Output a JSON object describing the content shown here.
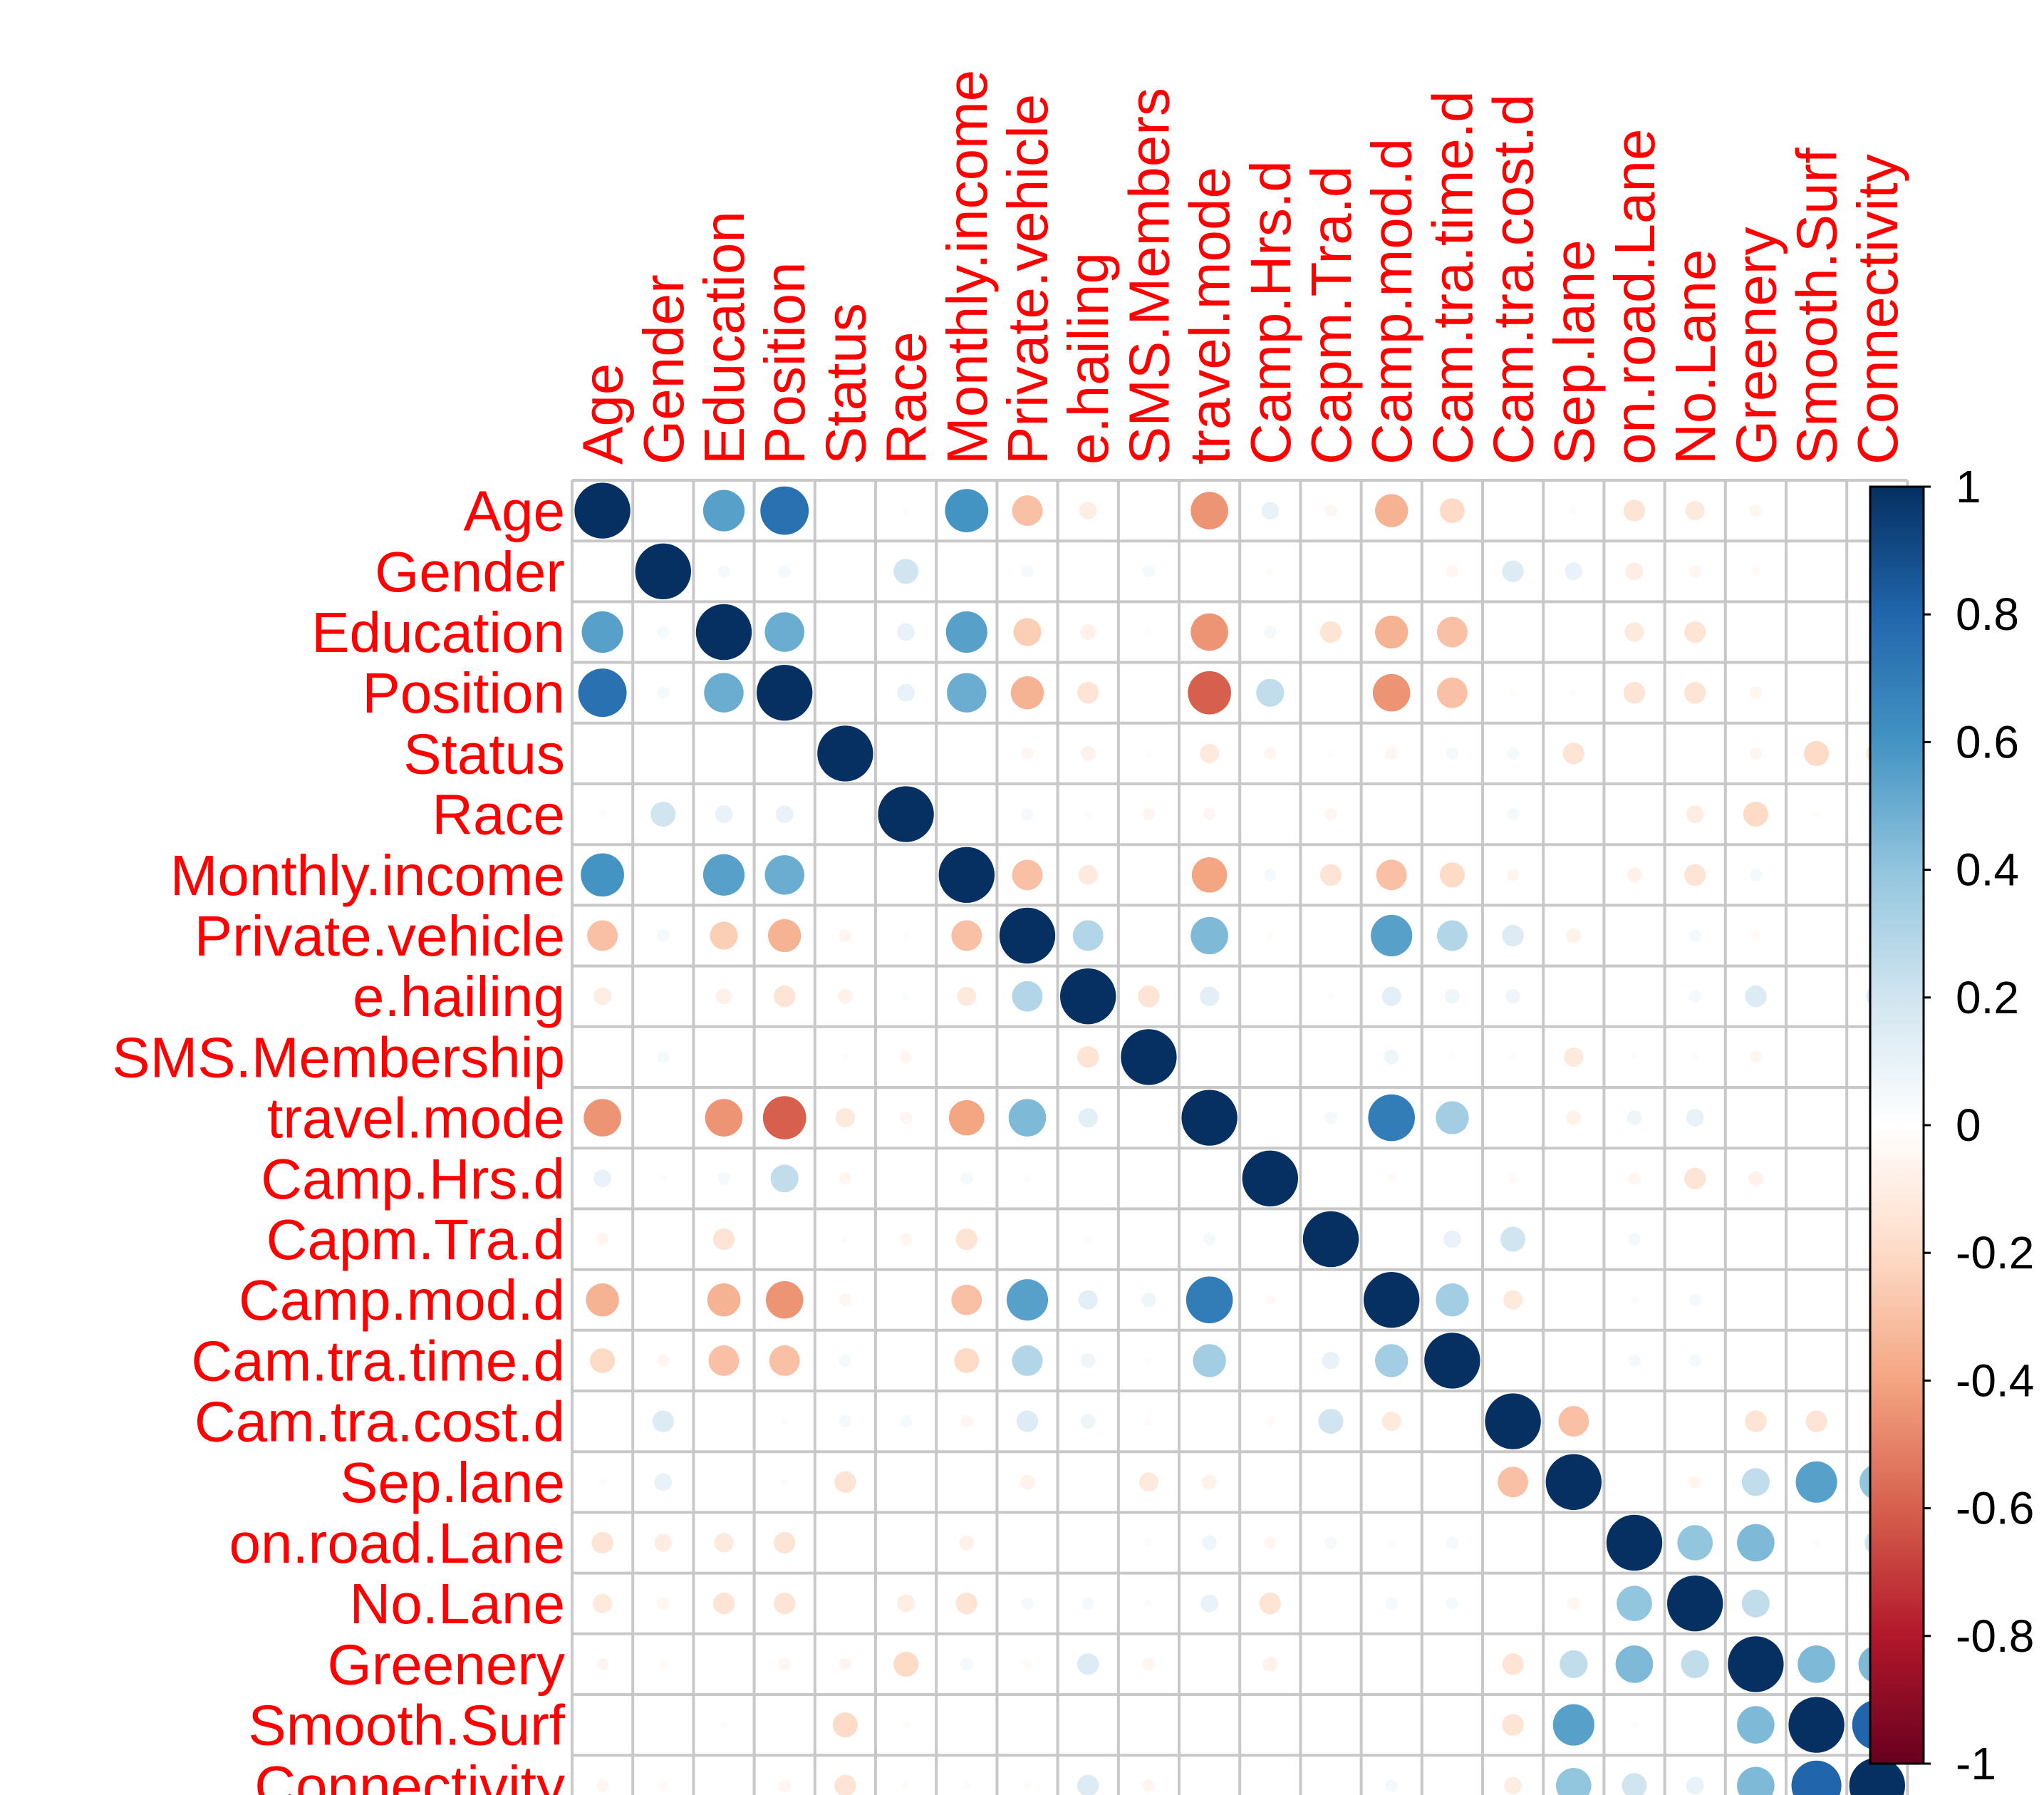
{
  "chart_data": {
    "type": "heatmap",
    "variables": [
      "Age",
      "Gender",
      "Education",
      "Position",
      "Status",
      "Race",
      "Monthly.income",
      "Private.vehicle",
      "e.hailing",
      "SMS.Membership",
      "travel.mode",
      "Camp.Hrs.d",
      "Capm.Tra.d",
      "Camp.mod.d",
      "Cam.tra.time.d",
      "Cam.tra.cost.d",
      "Sep.lane",
      "on.road.Lane",
      "No.Lane",
      "Greenery",
      "Smooth.Surf",
      "Connectivity"
    ],
    "column_labels": [
      "Age",
      "Gender",
      "Education",
      "Position",
      "Status",
      "Race",
      "Monthly.income",
      "Private.vehicle",
      "e.hailing",
      "SMS.Members",
      "travel.mode",
      "Camp.Hrs.d",
      "Capm.Tra.d",
      "Camp.mod.d",
      "Cam.tra.time.d",
      "Cam.tra.cost.d",
      "Sep.lane",
      "on.road.Lane",
      "No.Lane",
      "Greenery",
      "Smooth.Surf",
      "Connectivity"
    ],
    "matrix": [
      [
        1,
        0,
        0.55,
        0.75,
        0,
        0.02,
        0.6,
        -0.3,
        -0.1,
        0,
        -0.45,
        0.1,
        -0.05,
        -0.35,
        -0.2,
        0,
        0.02,
        -0.15,
        -0.12,
        -0.05,
        0,
        -0.05
      ],
      [
        0,
        1,
        0.05,
        0.05,
        0,
        0.2,
        0,
        0.05,
        0,
        0.05,
        0,
        -0.02,
        0,
        0,
        -0.05,
        0.15,
        0.1,
        -0.1,
        -0.05,
        -0.03,
        0,
        -0.03
      ],
      [
        0.55,
        0.05,
        1,
        0.5,
        0,
        0.1,
        0.55,
        -0.25,
        -0.08,
        0.02,
        -0.45,
        0.05,
        -0.15,
        -0.35,
        -0.3,
        0,
        0,
        -0.12,
        -0.15,
        0,
        0,
        0
      ],
      [
        0.75,
        0.05,
        0.5,
        1,
        0,
        0.1,
        0.5,
        -0.35,
        -0.15,
        0,
        -0.6,
        0.25,
        0,
        -0.45,
        -0.3,
        -0.02,
        0.02,
        -0.15,
        -0.15,
        -0.05,
        0,
        -0.05
      ],
      [
        0,
        0,
        0,
        0,
        1,
        0,
        0,
        -0.05,
        -0.07,
        0.02,
        -0.12,
        -0.05,
        0.02,
        -0.05,
        0.05,
        0.05,
        -0.15,
        0,
        0,
        -0.05,
        -0.2,
        -0.15
      ],
      [
        0.02,
        0.2,
        0.1,
        0.1,
        0,
        1,
        0,
        0.05,
        0.02,
        -0.05,
        -0.05,
        0,
        -0.05,
        0,
        0,
        0.05,
        0,
        0,
        -0.1,
        -0.2,
        -0.02,
        -0.02
      ],
      [
        0.6,
        0,
        0.55,
        0.5,
        0,
        0,
        1,
        -0.3,
        -0.12,
        0,
        -0.4,
        0.05,
        -0.15,
        -0.3,
        -0.2,
        -0.05,
        0,
        -0.07,
        -0.15,
        0.05,
        0,
        0.02
      ],
      [
        -0.3,
        0.05,
        -0.25,
        -0.35,
        -0.05,
        0.02,
        -0.3,
        1,
        0.3,
        0,
        0.45,
        -0.02,
        0,
        0.55,
        0.3,
        0.15,
        -0.07,
        0,
        0.05,
        -0.03,
        0,
        -0.02
      ],
      [
        -0.1,
        0,
        -0.08,
        -0.15,
        -0.07,
        0.02,
        -0.12,
        0.3,
        1,
        -0.15,
        0.12,
        0,
        0.02,
        0.12,
        0.07,
        0.07,
        0,
        0,
        0.05,
        0.15,
        0,
        0.15
      ],
      [
        0,
        0.05,
        0,
        0,
        0.02,
        -0.05,
        0,
        0,
        -0.15,
        1,
        0,
        0,
        0,
        0.07,
        0.02,
        -0.02,
        -0.12,
        0.02,
        0.02,
        -0.05,
        0,
        -0.05
      ],
      [
        -0.45,
        0,
        -0.45,
        -0.6,
        -0.12,
        -0.05,
        -0.4,
        0.45,
        0.12,
        0,
        1,
        0,
        0.05,
        0.7,
        0.35,
        0,
        -0.07,
        0.07,
        0.1,
        0,
        0,
        0
      ],
      [
        0.1,
        -0.02,
        0.05,
        0.25,
        -0.05,
        0,
        0.05,
        -0.02,
        0,
        0,
        0,
        1,
        0,
        -0.03,
        0,
        -0.03,
        0,
        -0.05,
        -0.15,
        -0.07,
        0,
        0
      ],
      [
        -0.05,
        0,
        -0.15,
        0,
        0.02,
        -0.05,
        -0.15,
        0,
        0.02,
        0,
        0.05,
        0,
        1,
        0,
        0.1,
        0.2,
        0,
        0.05,
        0,
        0,
        0,
        0
      ],
      [
        -0.35,
        0,
        -0.35,
        -0.45,
        -0.05,
        0,
        -0.3,
        0.55,
        0.12,
        0.07,
        0.7,
        -0.03,
        0,
        1,
        0.35,
        -0.12,
        0,
        0.02,
        0.05,
        0,
        0,
        0.05
      ],
      [
        -0.2,
        -0.05,
        -0.3,
        -0.3,
        0.05,
        0,
        -0.2,
        0.3,
        0.07,
        0.02,
        0.35,
        0,
        0.1,
        0.35,
        1,
        0,
        0,
        0.05,
        0.05,
        0,
        0,
        0
      ],
      [
        0,
        0.15,
        0,
        -0.02,
        0.05,
        0.05,
        -0.05,
        0.15,
        0.07,
        -0.02,
        0,
        -0.03,
        0.2,
        -0.12,
        0,
        1,
        -0.3,
        0,
        0,
        -0.15,
        -0.15,
        -0.1
      ],
      [
        0.02,
        0.1,
        0,
        0.02,
        -0.15,
        0,
        0,
        -0.07,
        0,
        -0.12,
        -0.07,
        0,
        0,
        0,
        0,
        -0.3,
        1,
        0,
        -0.05,
        0.25,
        0.55,
        0.4
      ],
      [
        -0.15,
        -0.1,
        -0.12,
        -0.15,
        0,
        0,
        -0.07,
        0,
        0,
        0.02,
        0.07,
        -0.05,
        0.05,
        0.02,
        0.05,
        0,
        0,
        1,
        0.4,
        0.45,
        0.02,
        0.2
      ],
      [
        -0.12,
        -0.05,
        -0.15,
        -0.15,
        0,
        -0.1,
        -0.15,
        0.05,
        0.05,
        0.02,
        0.1,
        -0.15,
        0,
        0.05,
        0.05,
        0,
        -0.05,
        0.4,
        1,
        0.25,
        0,
        0.1
      ],
      [
        -0.05,
        -0.03,
        0,
        -0.05,
        -0.05,
        -0.2,
        0.05,
        -0.03,
        0.15,
        -0.05,
        0,
        -0.07,
        0,
        0,
        0,
        -0.15,
        0.25,
        0.45,
        0.25,
        1,
        0.45,
        0.45
      ],
      [
        0,
        0,
        0.02,
        0,
        -0.2,
        -0.02,
        0,
        0,
        0,
        0,
        0,
        0,
        0,
        0,
        0,
        -0.15,
        0.55,
        0.02,
        0,
        0.45,
        1,
        0.8
      ],
      [
        -0.05,
        -0.03,
        0,
        -0.05,
        -0.15,
        -0.02,
        0.02,
        -0.02,
        0.15,
        -0.05,
        0,
        0,
        0,
        0.05,
        0,
        -0.1,
        0.4,
        0.2,
        0.1,
        0.45,
        0.8,
        1
      ]
    ],
    "colorbar": {
      "range": [
        -1,
        1
      ],
      "tick_values": [
        1,
        0.8,
        0.6,
        0.4,
        0.2,
        0,
        -0.2,
        -0.4,
        -0.6,
        -0.8,
        -1
      ],
      "tick_labels": [
        "1",
        "0.8",
        "0.6",
        "0.4",
        "0.2",
        "0",
        "-0.2",
        "-0.4",
        "-0.6",
        "-0.8",
        "-1"
      ]
    },
    "colors": {
      "label": "#ff0000",
      "grid": "#c8c8c8",
      "palette": [
        "#67001f",
        "#b2182b",
        "#d6604d",
        "#f4a582",
        "#fddbc7",
        "#ffffff",
        "#d1e5f0",
        "#92c5de",
        "#4393c3",
        "#2166ac",
        "#053061"
      ]
    },
    "marker": "circle",
    "title": "",
    "xlabel": "",
    "ylabel": ""
  }
}
